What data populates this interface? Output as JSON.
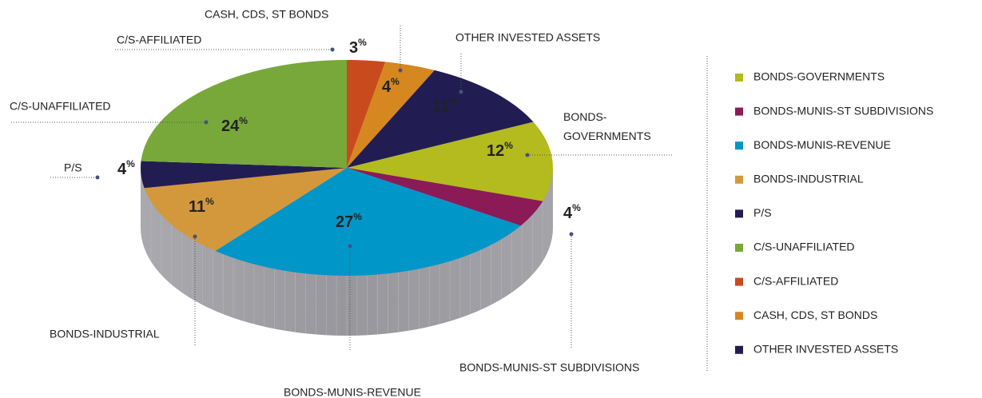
{
  "chart_data": {
    "type": "pie3d",
    "categories": [
      "BONDS-GOVERNMENTS",
      "BONDS-MUNIS-ST SUBDIVISIONS",
      "BONDS-MUNIS-REVENUE",
      "BONDS-INDUSTRIAL",
      "P/S",
      "C/S-UNAFFILIATED",
      "C/S-AFFILIATED",
      "CASH, CDS, ST BONDS",
      "OTHER INVESTED ASSETS"
    ],
    "values": [
      12,
      4,
      27,
      11,
      4,
      24,
      3,
      4,
      11
    ],
    "value_labels": [
      "12%",
      "4%",
      "27%",
      "11%",
      "4%",
      "24%",
      "3%",
      "4%",
      "11%"
    ],
    "colors": [
      "#b3bb1e",
      "#8b1a57",
      "#0096c8",
      "#d4983c",
      "#211d52",
      "#78a83a",
      "#c84b1e",
      "#d6871f",
      "#211d52"
    ],
    "legend": "right"
  }
}
